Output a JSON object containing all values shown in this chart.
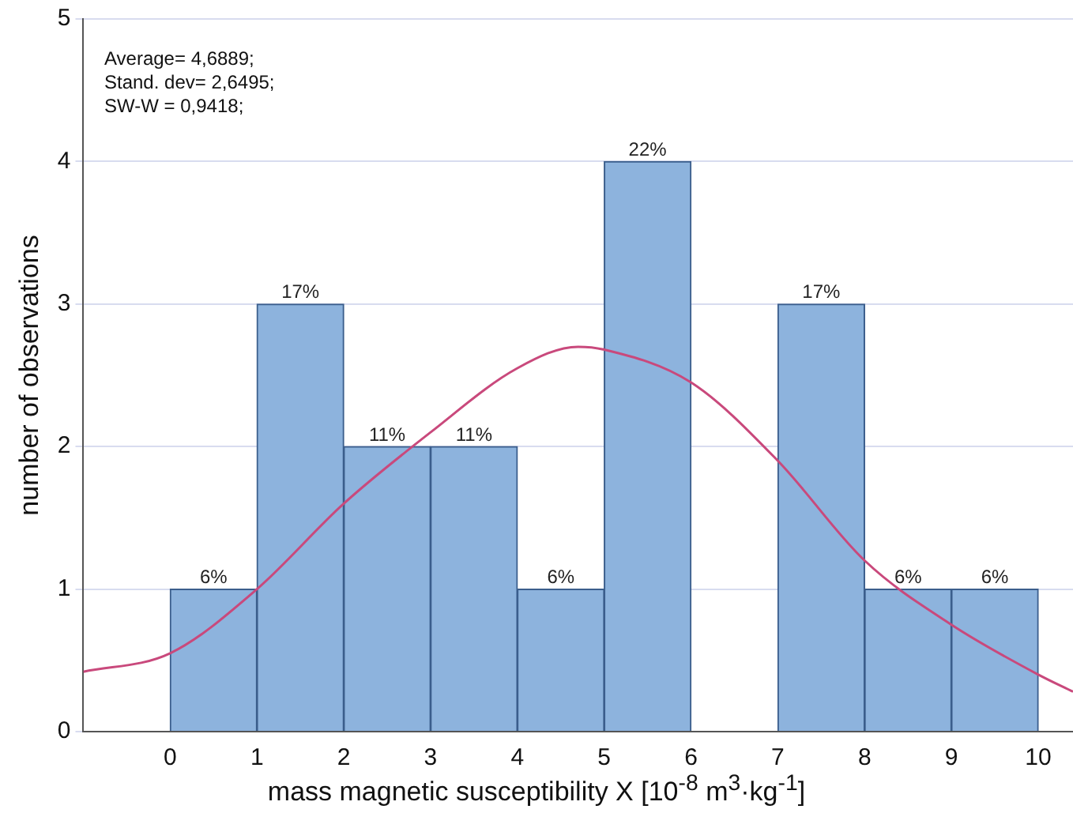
{
  "chart_data": {
    "type": "histogram",
    "xlabel": "mass magnetic susceptibility X [10$^{-8}$ m$^{3}$·kg$^{-1}$]",
    "ylabel": "number of observations",
    "bins": [
      0,
      1,
      2,
      3,
      4,
      5,
      6,
      7,
      8,
      9,
      10
    ],
    "values": [
      1,
      3,
      2,
      2,
      1,
      4,
      0,
      3,
      1,
      1
    ],
    "color": "#8db3dd",
    "series": [
      {
        "type": "line",
        "color": "#c9497c",
        "x": [
          -1,
          0,
          1,
          2,
          3,
          4,
          4.7,
          5,
          6,
          7,
          8,
          9,
          10,
          10.4
        ],
        "values": [
          0.42,
          0.55,
          1.0,
          1.6,
          2.1,
          2.55,
          2.7,
          2.68,
          2.45,
          1.9,
          1.2,
          0.75,
          0.4,
          0.28
        ]
      }
    ],
    "xlim": [
      -1,
      10.4
    ],
    "xticks": [
      0,
      1,
      2,
      3,
      4,
      5,
      6,
      7,
      8,
      9,
      10
    ],
    "ylim": [
      0,
      5
    ],
    "yticks": [
      0,
      1,
      2,
      3,
      4,
      5
    ],
    "grid": "y",
    "legend": false,
    "annotations": [
      "Average= 4,6889;",
      "Stand. dev= 2,6495;",
      "SW-W = 0,9418;",
      {
        "text": "6%",
        "x": 0.5,
        "y": 1
      },
      {
        "text": "17%",
        "x": 1.5,
        "y": 3
      },
      {
        "text": "11%",
        "x": 2.5,
        "y": 2
      },
      {
        "text": "11%",
        "x": 3.5,
        "y": 2
      },
      {
        "text": "6%",
        "x": 4.5,
        "y": 1
      },
      {
        "text": "22%",
        "x": 5.5,
        "y": 4
      },
      {
        "text": "17%",
        "x": 7.5,
        "y": 3
      },
      {
        "text": "6%",
        "x": 8.5,
        "y": 1
      },
      {
        "text": "6%",
        "x": 9.5,
        "y": 1
      }
    ]
  }
}
